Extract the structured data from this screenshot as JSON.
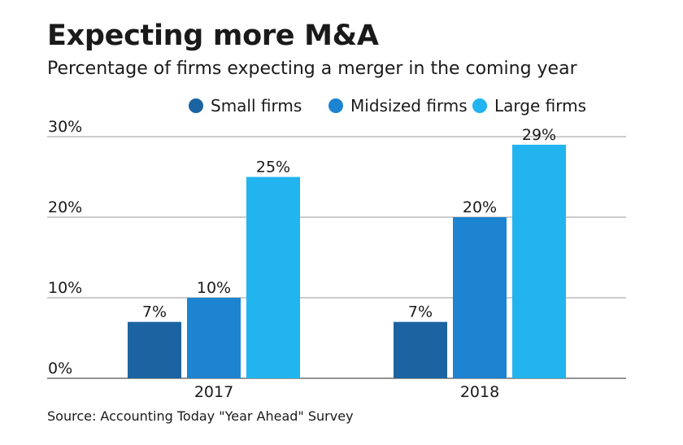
{
  "title": "Expecting more M&A",
  "subtitle": "Percentage of firms expecting a merger in the coming year",
  "source": "Source: Accounting Today \"Year Ahead\" Survey",
  "chart_data": {
    "type": "bar",
    "categories": [
      "2017",
      "2018"
    ],
    "series": [
      {
        "name": "Small firms",
        "values": [
          7,
          7
        ],
        "labels": [
          "7%",
          "7%"
        ],
        "color": "#1b64a1"
      },
      {
        "name": "Midsized firms",
        "values": [
          10,
          20
        ],
        "labels": [
          "10%",
          "20%"
        ],
        "color": "#1c84d1"
      },
      {
        "name": "Large firms",
        "values": [
          25,
          29
        ],
        "labels": [
          "25%",
          "29%"
        ],
        "color": "#21b4ef"
      }
    ],
    "yticks": [
      0,
      10,
      20,
      30
    ],
    "ytick_labels": [
      "0%",
      "10%",
      "20%",
      "30%"
    ],
    "ylim": [
      0,
      30
    ],
    "xlabel": "",
    "ylabel": "",
    "legend_position": "top-right",
    "grid": true
  }
}
